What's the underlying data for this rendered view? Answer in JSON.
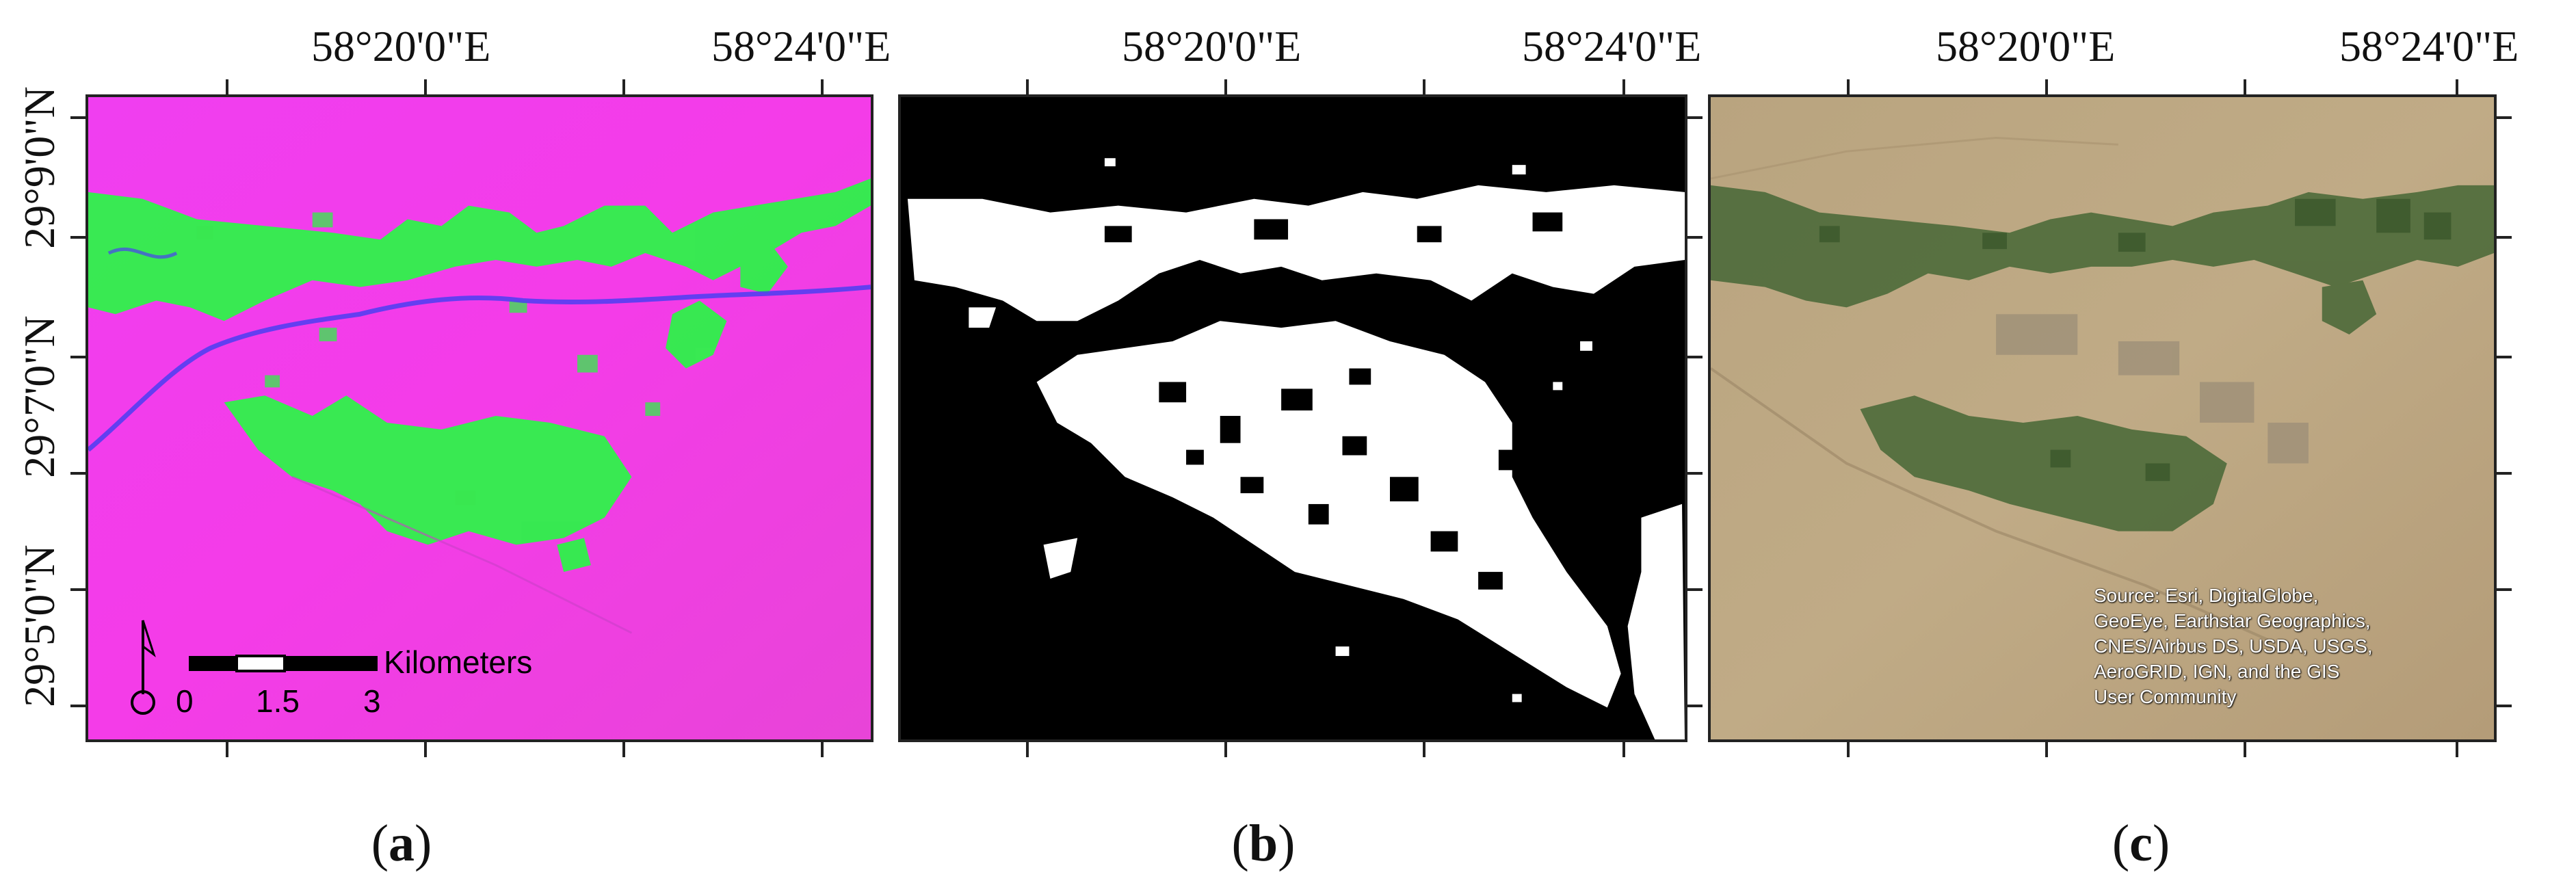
{
  "figure": {
    "longitude_labels": [
      "58°20'0\"E",
      "58°24'0\"E"
    ],
    "latitude_labels": [
      "29°9'0\"N",
      "29°7'0\"N",
      "29°5'0\"N"
    ],
    "captions": [
      {
        "open": "(",
        "letter": "a",
        "close": ")"
      },
      {
        "open": "(",
        "letter": "b",
        "close": ")"
      },
      {
        "open": "(",
        "letter": "c",
        "close": ")"
      }
    ]
  },
  "panel_a": {
    "scale_bar": {
      "unit_label": "Kilometers",
      "ticks": [
        "0",
        "1.5",
        "3"
      ]
    },
    "north_arrow_icon": "north-arrow-icon"
  },
  "panel_c": {
    "attribution_lines": [
      "Source: Esri, DigitalGlobe,",
      "GeoEye, Earthstar Geographics,",
      "CNES/Airbus DS, USDA, USGS,",
      "AeroGRID, IGN, and the GIS",
      "User Community"
    ]
  },
  "colors": {
    "false_color_background": "#f23cf0",
    "vegetation": "#2ef24a",
    "river": "#4a3ef2",
    "mask_foreground": "#ffffff",
    "mask_background": "#000000",
    "desert": "#b8a27e",
    "tree_cover": "#4d6a3a"
  }
}
